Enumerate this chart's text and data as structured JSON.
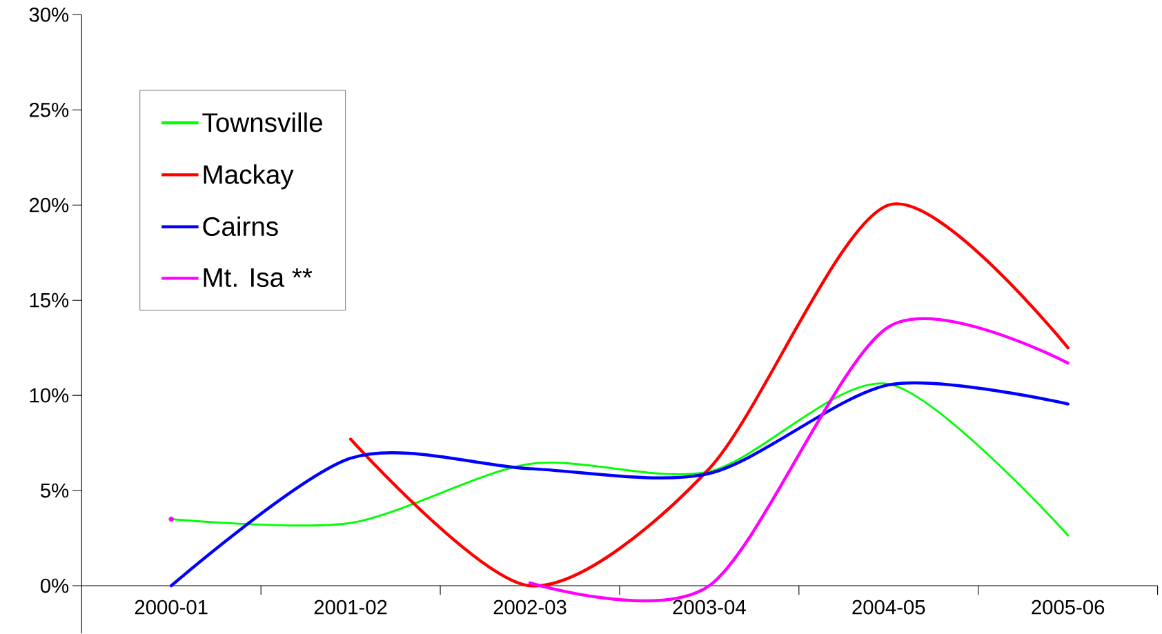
{
  "chart_data": {
    "type": "line",
    "categories": [
      "2000-01",
      "2001-02",
      "2002-03",
      "2003-04",
      "2004-05",
      "2005-06"
    ],
    "series": [
      {
        "name": "Townsville",
        "color": "#00ff00",
        "values": [
          3.5,
          3.3,
          6.4,
          6.0,
          10.6,
          2.65
        ]
      },
      {
        "name": "Mackay",
        "color": "#ff0000",
        "values": [
          null,
          7.7,
          0.0,
          6.15,
          20.0,
          12.5
        ]
      },
      {
        "name": "Cairns",
        "color": "#0000ff",
        "values": [
          0.0,
          6.7,
          6.15,
          5.9,
          10.55,
          9.55
        ]
      },
      {
        "name": "Mt. Isa **",
        "color": "#ff00ff",
        "values": [
          3.5,
          null,
          0.15,
          0.0,
          13.6,
          11.7
        ]
      }
    ],
    "ylim": [
      -2.5,
      30
    ],
    "yticks": [
      {
        "value": 0,
        "label": "0%"
      },
      {
        "value": 5,
        "label": "5%"
      },
      {
        "value": 10,
        "label": "10%"
      },
      {
        "value": 15,
        "label": "15%"
      },
      {
        "value": 20,
        "label": "20%"
      },
      {
        "value": 25,
        "label": "25%"
      },
      {
        "value": 30,
        "label": "30%"
      }
    ],
    "legend": "top left"
  }
}
